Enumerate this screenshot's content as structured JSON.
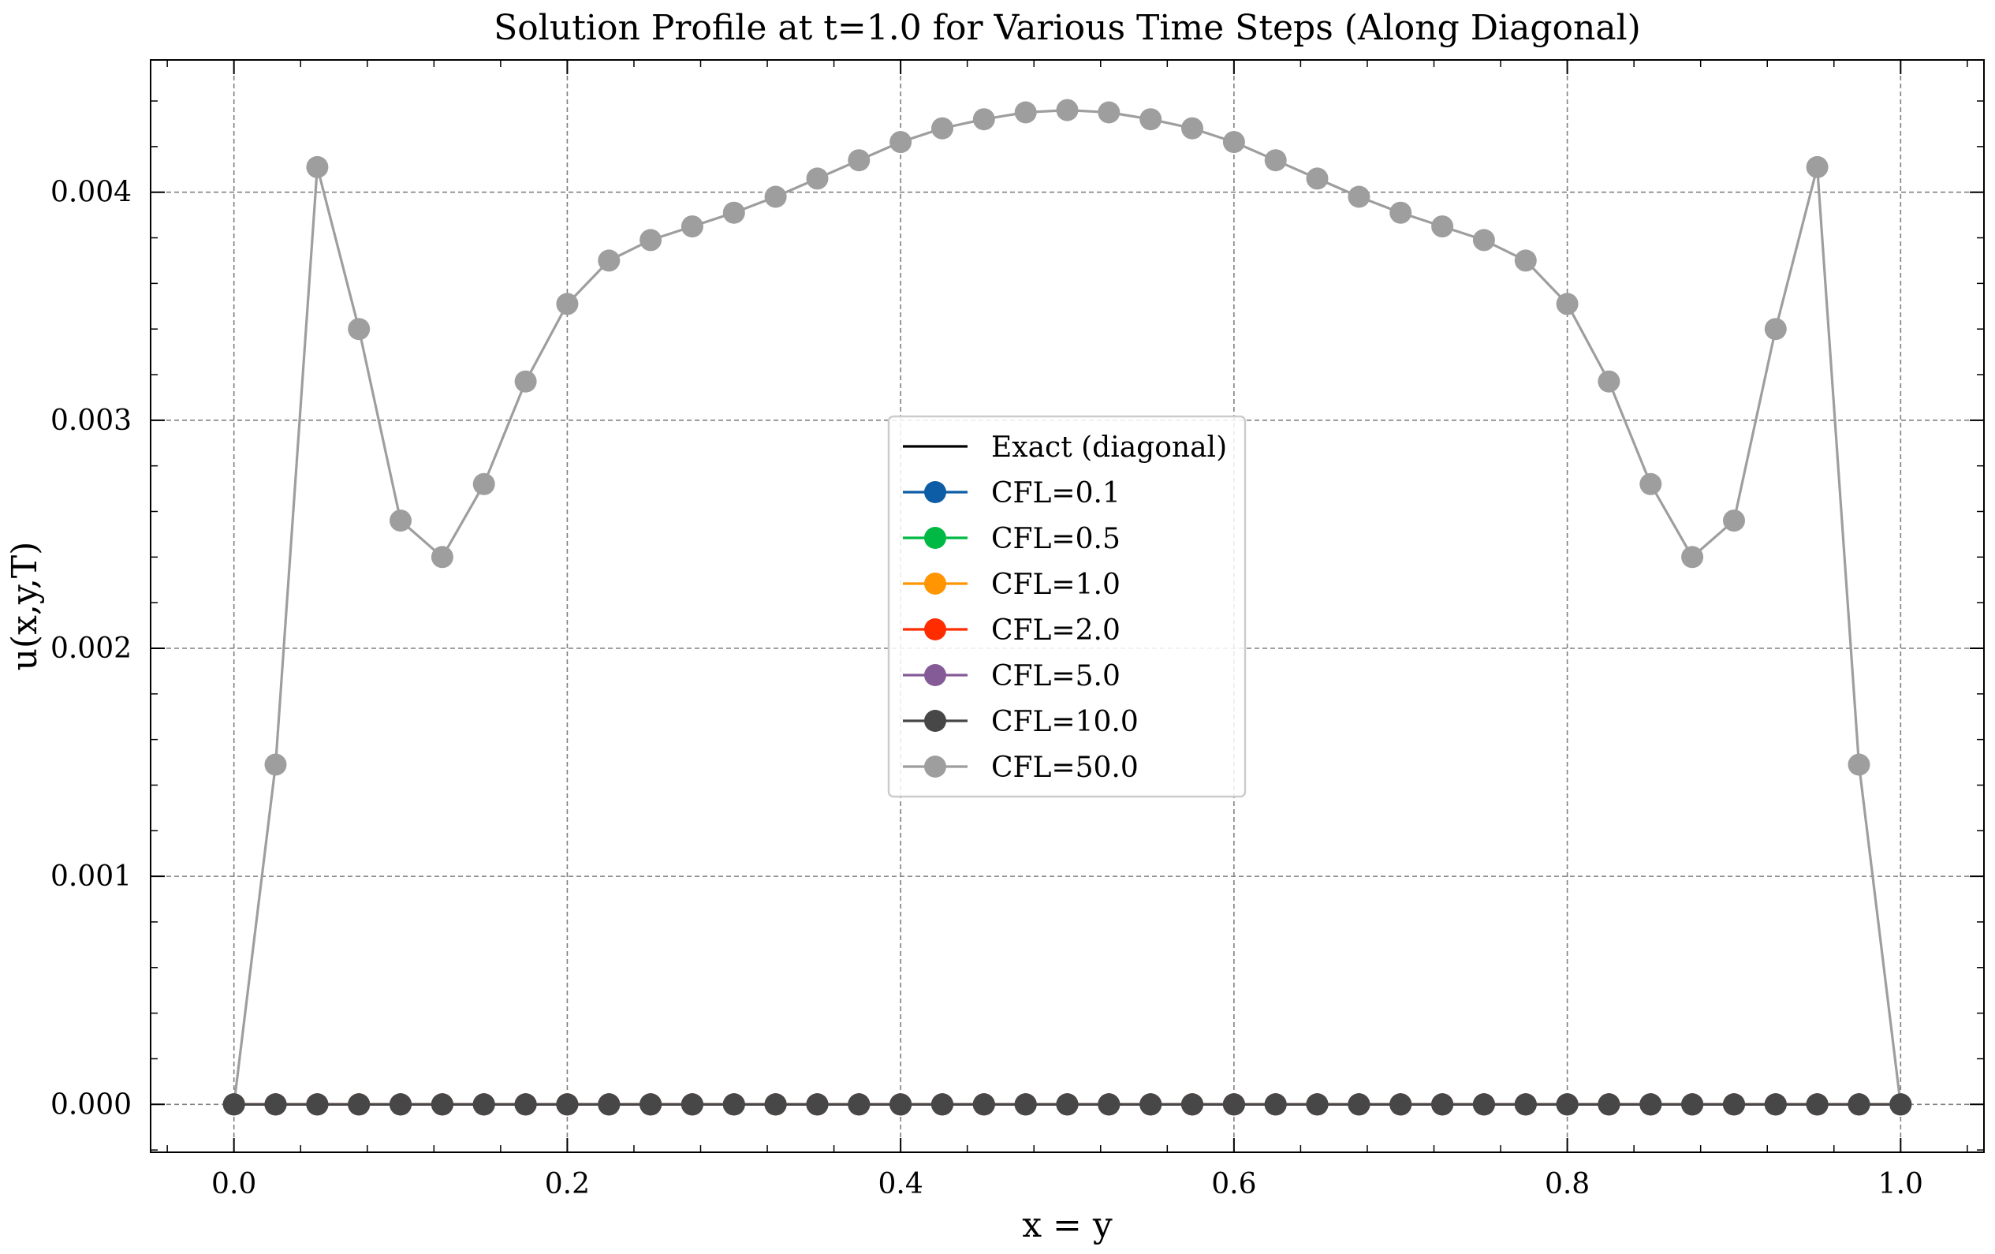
{
  "chart_data": {
    "type": "line",
    "title": "Solution Profile at t=1.0 for Various Time Steps (Along Diagonal)",
    "xlabel": "x = y",
    "ylabel": "u(x,y,T)",
    "xlim": [
      -0.05,
      1.05
    ],
    "ylim": [
      -0.00021,
      0.00458
    ],
    "xticks": [
      0.0,
      0.2,
      0.4,
      0.6,
      0.8,
      1.0
    ],
    "xtick_labels": [
      "0.0",
      "0.2",
      "0.4",
      "0.6",
      "0.8",
      "1.0"
    ],
    "yticks": [
      0.0,
      0.001,
      0.002,
      0.003,
      0.004
    ],
    "ytick_labels": [
      "0.000",
      "0.001",
      "0.002",
      "0.003",
      "0.004"
    ],
    "grid": true,
    "legend_position": "center",
    "x": [
      0.0,
      0.025,
      0.05,
      0.075,
      0.1,
      0.125,
      0.15,
      0.175,
      0.2,
      0.225,
      0.25,
      0.275,
      0.3,
      0.325,
      0.35,
      0.375,
      0.4,
      0.425,
      0.45,
      0.475,
      0.5,
      0.525,
      0.55,
      0.575,
      0.6,
      0.625,
      0.65,
      0.675,
      0.7,
      0.725,
      0.75,
      0.775,
      0.8,
      0.825,
      0.85,
      0.875,
      0.9,
      0.925,
      0.95,
      0.975,
      1.0
    ],
    "series": [
      {
        "name": "Exact (diagonal)",
        "color": "#000000",
        "marker": false,
        "values": [
          0,
          0,
          0,
          0,
          0,
          0,
          0,
          0,
          0,
          0,
          0,
          0,
          0,
          0,
          0,
          0,
          0,
          0,
          0,
          0,
          0,
          0,
          0,
          0,
          0,
          0,
          0,
          0,
          0,
          0,
          0,
          0,
          0,
          0,
          0,
          0,
          0,
          0,
          0,
          0,
          0
        ]
      },
      {
        "name": "CFL=0.1",
        "color": "#0c5da5",
        "marker": true,
        "values": [
          0,
          0,
          0,
          0,
          0,
          0,
          0,
          0,
          0,
          0,
          0,
          0,
          0,
          0,
          0,
          0,
          0,
          0,
          0,
          0,
          0,
          0,
          0,
          0,
          0,
          0,
          0,
          0,
          0,
          0,
          0,
          0,
          0,
          0,
          0,
          0,
          0,
          0,
          0,
          0,
          0
        ]
      },
      {
        "name": "CFL=0.5",
        "color": "#00b945",
        "marker": true,
        "values": [
          0,
          0,
          0,
          0,
          0,
          0,
          0,
          0,
          0,
          0,
          0,
          0,
          0,
          0,
          0,
          0,
          0,
          0,
          0,
          0,
          0,
          0,
          0,
          0,
          0,
          0,
          0,
          0,
          0,
          0,
          0,
          0,
          0,
          0,
          0,
          0,
          0,
          0,
          0,
          0,
          0
        ]
      },
      {
        "name": "CFL=1.0",
        "color": "#ff9500",
        "marker": true,
        "values": [
          0,
          0,
          0,
          0,
          0,
          0,
          0,
          0,
          0,
          0,
          0,
          0,
          0,
          0,
          0,
          0,
          0,
          0,
          0,
          0,
          0,
          0,
          0,
          0,
          0,
          0,
          0,
          0,
          0,
          0,
          0,
          0,
          0,
          0,
          0,
          0,
          0,
          0,
          0,
          0,
          0
        ]
      },
      {
        "name": "CFL=2.0",
        "color": "#ff2c00",
        "marker": true,
        "values": [
          0,
          0,
          0,
          0,
          0,
          0,
          0,
          0,
          0,
          0,
          0,
          0,
          0,
          0,
          0,
          0,
          0,
          0,
          0,
          0,
          0,
          0,
          0,
          0,
          0,
          0,
          0,
          0,
          0,
          0,
          0,
          0,
          0,
          0,
          0,
          0,
          0,
          0,
          0,
          0,
          0
        ]
      },
      {
        "name": "CFL=5.0",
        "color": "#845b97",
        "marker": true,
        "values": [
          0,
          0,
          0,
          0,
          0,
          0,
          0,
          0,
          0,
          0,
          0,
          0,
          0,
          0,
          0,
          0,
          0,
          0,
          0,
          0,
          0,
          0,
          0,
          0,
          0,
          0,
          0,
          0,
          0,
          0,
          0,
          0,
          0,
          0,
          0,
          0,
          0,
          0,
          0,
          0,
          0
        ]
      },
      {
        "name": "CFL=10.0",
        "color": "#474747",
        "marker": true,
        "values": [
          0,
          0,
          0,
          0,
          0,
          0,
          0,
          0,
          0,
          0,
          0,
          0,
          0,
          0,
          0,
          0,
          0,
          0,
          0,
          0,
          0,
          0,
          0,
          0,
          0,
          0,
          0,
          0,
          0,
          0,
          0,
          0,
          0,
          0,
          0,
          0,
          0,
          0,
          0,
          0,
          0
        ]
      },
      {
        "name": "CFL=50.0",
        "color": "#9e9e9e",
        "marker": true,
        "values": [
          0,
          0.00149,
          0.00411,
          0.0034,
          0.00256,
          0.0024,
          0.00272,
          0.00317,
          0.00351,
          0.0037,
          0.00379,
          0.00385,
          0.00391,
          0.00398,
          0.00406,
          0.00414,
          0.00422,
          0.00428,
          0.00432,
          0.00435,
          0.00436,
          0.00435,
          0.00432,
          0.00428,
          0.00422,
          0.00414,
          0.00406,
          0.00398,
          0.00391,
          0.00385,
          0.00379,
          0.0037,
          0.00351,
          0.00317,
          0.00272,
          0.0024,
          0.00256,
          0.0034,
          0.00411,
          0.00149,
          0
        ]
      }
    ]
  }
}
